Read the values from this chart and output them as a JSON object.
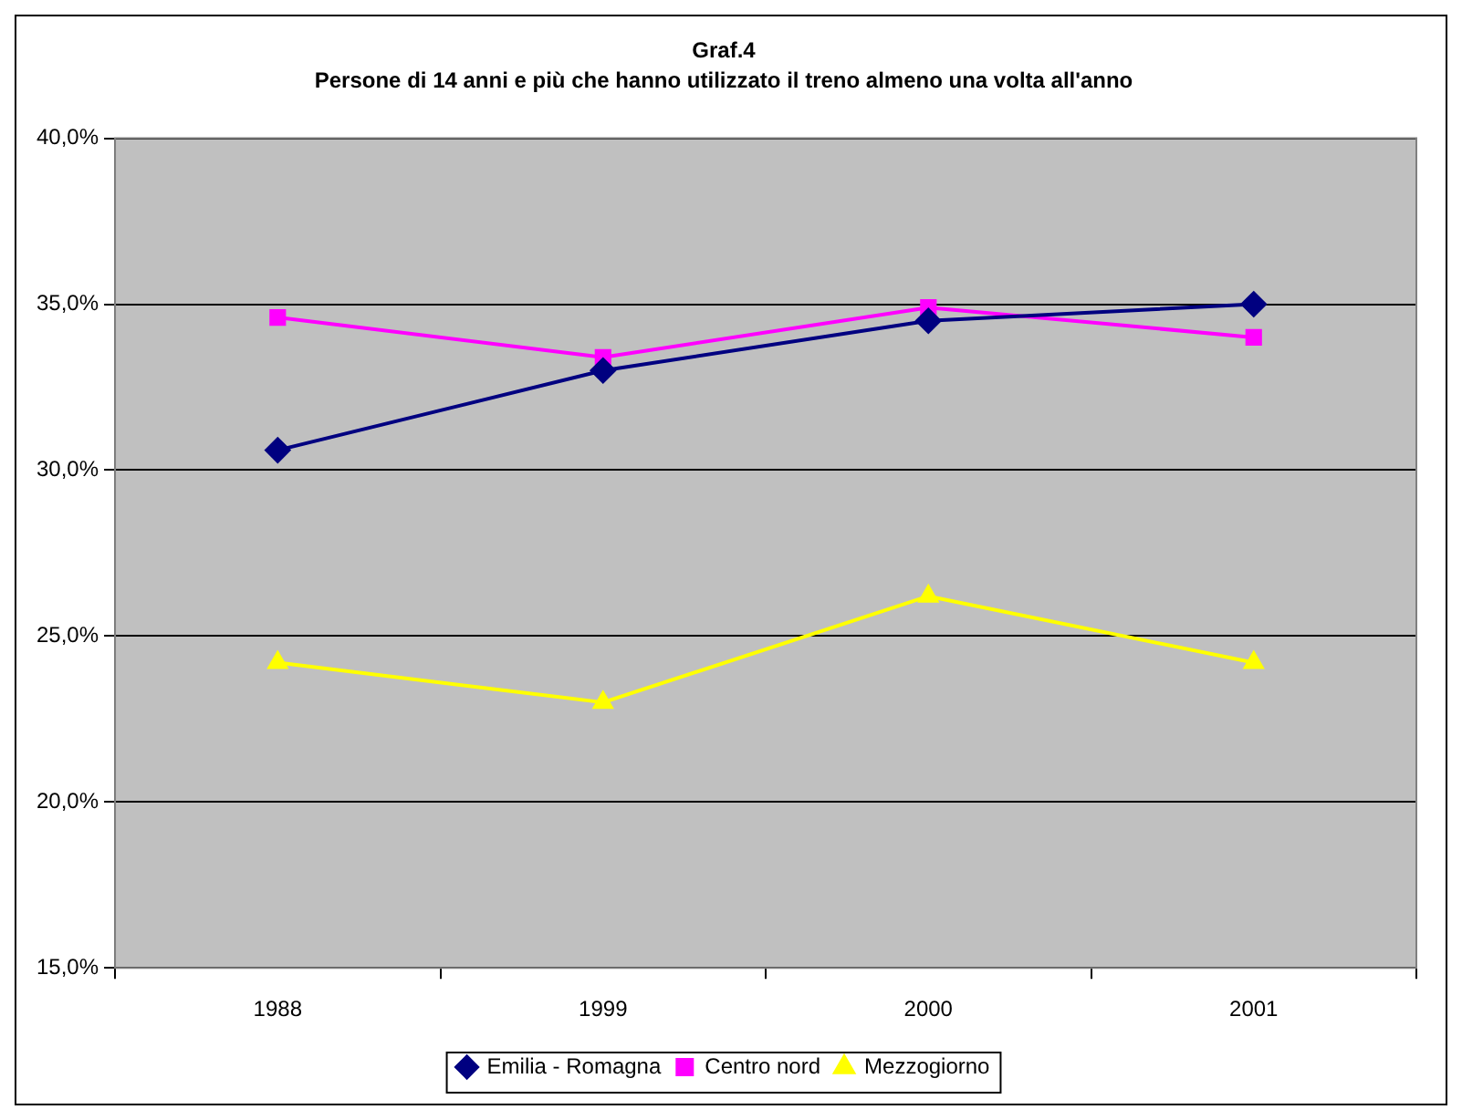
{
  "chart_data": {
    "type": "line",
    "title": "Graf.4",
    "subtitle": "Persone di 14 anni e più che hanno utilizzato il treno almeno una volta all'anno",
    "categories": [
      "1988",
      "1999",
      "2000",
      "2001"
    ],
    "series": [
      {
        "name": "Emilia - Romagna",
        "color": "#000080",
        "marker": "diamond",
        "values": [
          30.6,
          33.0,
          34.5,
          35.0
        ]
      },
      {
        "name": "Centro nord",
        "color": "#ff00ff",
        "marker": "square",
        "values": [
          34.6,
          33.4,
          34.9,
          34.0
        ]
      },
      {
        "name": "Mezzogiorno",
        "color": "#ffff00",
        "marker": "triangle",
        "values": [
          24.2,
          23.0,
          26.2,
          24.2
        ]
      }
    ],
    "ylim": [
      15,
      40
    ],
    "yticks": [
      {
        "value": 15,
        "label": "15,0%"
      },
      {
        "value": 20,
        "label": "20,0%"
      },
      {
        "value": 25,
        "label": "25,0%"
      },
      {
        "value": 30,
        "label": "30,0%"
      },
      {
        "value": 35,
        "label": "35,0%"
      },
      {
        "value": 40,
        "label": "40,0%"
      }
    ],
    "grid": "y",
    "legend": "bottom",
    "line_style": "solid"
  }
}
